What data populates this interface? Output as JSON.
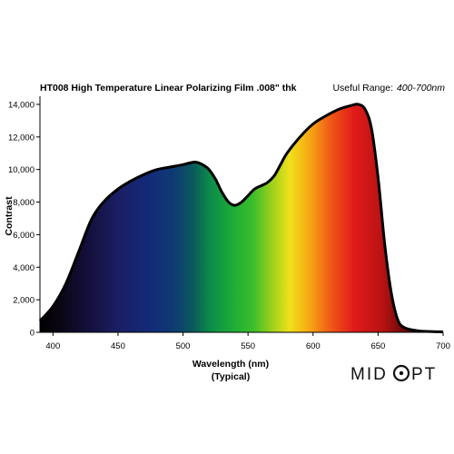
{
  "chart_data": {
    "type": "area",
    "title": "HT008 High Temperature Linear Polarizing Film .008\" thk",
    "useful_range_label": "Useful Range:",
    "useful_range_value": "400-700nm",
    "xlabel": "Wavelength (nm)",
    "xlabel_sub": "(Typical)",
    "ylabel": "Contrast",
    "xlim": [
      390,
      700
    ],
    "ylim": [
      0,
      14500
    ],
    "x_ticks": [
      400,
      450,
      500,
      550,
      600,
      650,
      700
    ],
    "y_ticks": [
      0,
      2000,
      4000,
      6000,
      8000,
      10000,
      12000,
      14000
    ],
    "y_tick_labels": [
      "0",
      "2,000",
      "4,000",
      "6,000",
      "8,000",
      "10,000",
      "12,000",
      "14,000"
    ],
    "grid": false,
    "fill": "visible-spectrum gradient",
    "series": [
      {
        "x": [
          390,
          400,
          410,
          420,
          430,
          440,
          450,
          460,
          470,
          480,
          490,
          500,
          505,
          510,
          515,
          520,
          525,
          530,
          535,
          540,
          545,
          550,
          555,
          560,
          565,
          570,
          575,
          580,
          590,
          600,
          610,
          620,
          630,
          635,
          640,
          645,
          650,
          655,
          660,
          665,
          670,
          680,
          690,
          700
        ],
        "y": [
          700,
          1600,
          3000,
          5000,
          7000,
          8100,
          8800,
          9300,
          9700,
          10000,
          10150,
          10300,
          10400,
          10450,
          10300,
          10000,
          9400,
          8600,
          8000,
          7800,
          8000,
          8400,
          8800,
          9000,
          9200,
          9600,
          10300,
          11000,
          12000,
          12800,
          13300,
          13700,
          13950,
          14000,
          13700,
          12500,
          9500,
          5500,
          2500,
          800,
          300,
          100,
          50,
          30
        ]
      }
    ]
  },
  "logo": {
    "text_left": "MID",
    "text_right": "PT",
    "glyph": "O"
  }
}
